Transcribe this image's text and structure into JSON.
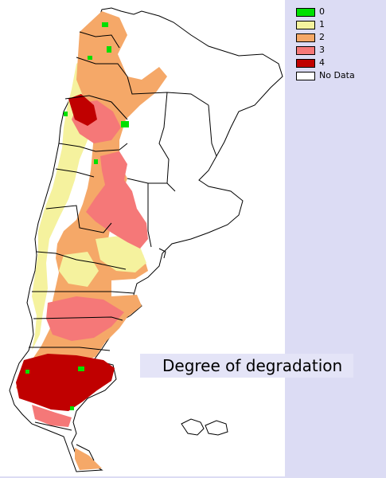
{
  "map": {
    "title": "Degree of degradation",
    "colors": {
      "background": "#dcdcf4",
      "ocean": "#ffffff",
      "class_0": "#00e000",
      "class_1": "#f5f29e",
      "class_2": "#f5a868",
      "class_3": "#f57878",
      "class_4": "#c00000",
      "no_data": "#ffffff"
    },
    "legend": [
      {
        "label": "0",
        "color": "#00e000"
      },
      {
        "label": "1",
        "color": "#f5f29e"
      },
      {
        "label": "2",
        "color": "#f5a868"
      },
      {
        "label": "3",
        "color": "#f57878"
      },
      {
        "label": "4",
        "color": "#c00000"
      },
      {
        "label": "No Data",
        "color": "#ffffff"
      }
    ]
  }
}
